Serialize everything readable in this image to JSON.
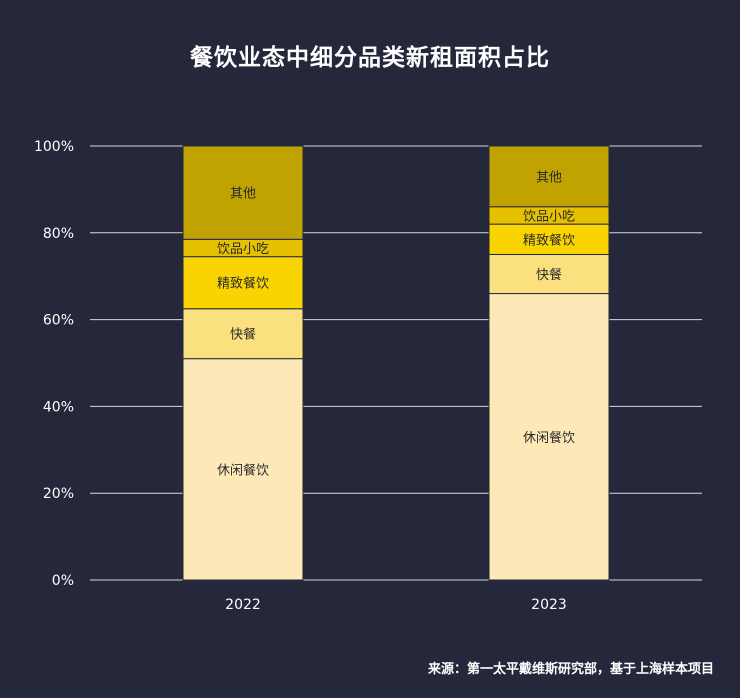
{
  "title": "餐饮业态中细分品类新租面积占比",
  "source": "来源：第一太平戴维斯研究部，基于上海样本项目",
  "chart_data": {
    "type": "bar",
    "stacked": true,
    "categories": [
      "2022",
      "2023"
    ],
    "series": [
      {
        "name": "休闲餐饮",
        "values": [
          51,
          66
        ],
        "color": "#fde9b7"
      },
      {
        "name": "快餐",
        "values": [
          11.5,
          9
        ],
        "color": "#fbe07f"
      },
      {
        "name": "精致餐饮",
        "values": [
          12,
          7
        ],
        "color": "#f9d400"
      },
      {
        "name": "饮品小吃",
        "values": [
          4,
          4
        ],
        "color": "#e6c100"
      },
      {
        "name": "其他",
        "values": [
          21.5,
          14
        ],
        "color": "#c0a300"
      }
    ],
    "yticks": [
      "0%",
      "20%",
      "40%",
      "60%",
      "80%",
      "100%"
    ],
    "ylim": [
      0,
      100
    ],
    "grid": true,
    "legend": "none (labels inside segments)",
    "xlabel": "",
    "ylabel": ""
  }
}
